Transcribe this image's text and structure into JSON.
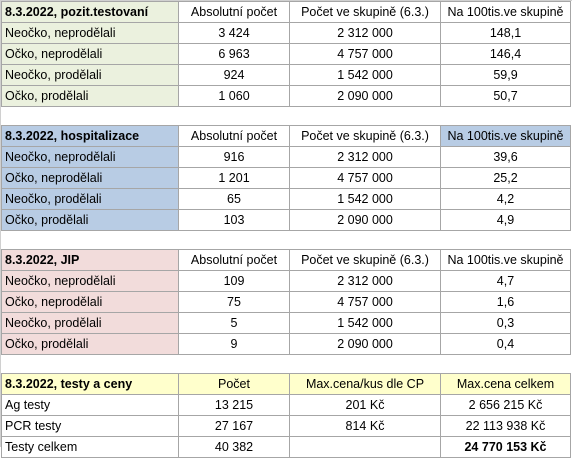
{
  "sections": [
    {
      "title": "8.3.2022, pozit.testovaní",
      "headers": [
        "Absolutní počet",
        "Počet ve skupině (6.3.)",
        "Na 100tis.ve skupině"
      ],
      "rows": [
        [
          "Neočko, neprodělali",
          "3 424",
          "2 312 000",
          "148,1"
        ],
        [
          "Očko, neprodělali",
          "6 963",
          "4 757 000",
          "146,4"
        ],
        [
          "Neočko, prodělali",
          "924",
          "1 542 000",
          "59,9"
        ],
        [
          "Očko, prodělali",
          "1 060",
          "2 090 000",
          "50,7"
        ]
      ]
    },
    {
      "title": "8.3.2022, hospitalizace",
      "headers": [
        "Absolutní počet",
        "Počet ve skupině (6.3.)",
        "Na 100tis.ve skupině"
      ],
      "rows": [
        [
          "Neočko, neprodělali",
          "916",
          "2 312 000",
          "39,6"
        ],
        [
          "Očko, neprodělali",
          "1 201",
          "4 757 000",
          "25,2"
        ],
        [
          "Neočko, prodělali",
          "65",
          "1 542 000",
          "4,2"
        ],
        [
          "Očko, prodělali",
          "103",
          "2 090 000",
          "4,9"
        ]
      ]
    },
    {
      "title": "8.3.2022, JIP",
      "headers": [
        "Absolutní počet",
        "Počet ve skupině (6.3.)",
        "Na 100tis.ve skupině"
      ],
      "rows": [
        [
          "Neočko, neprodělali",
          "109",
          "2 312 000",
          "4,7"
        ],
        [
          "Očko, neprodělali",
          "75",
          "4 757 000",
          "1,6"
        ],
        [
          "Neočko, prodělali",
          "5",
          "1 542 000",
          "0,3"
        ],
        [
          "Očko, prodělali",
          "9",
          "2 090 000",
          "0,4"
        ]
      ]
    },
    {
      "title": "8.3.2022, testy a ceny",
      "headers": [
        "Počet",
        "Max.cena/kus dle CP",
        "Max.cena celkem"
      ],
      "rows": [
        [
          "Ag testy",
          "13 215",
          "201 Kč",
          "2 656 215 Kč"
        ],
        [
          "PCR testy",
          "27 167",
          "814 Kč",
          "22 113 938 Kč"
        ],
        [
          "Testy celkem",
          "40 382",
          "",
          "24 770 153 Kč"
        ]
      ]
    }
  ],
  "colors": {
    "green": "#ebf1de",
    "blue": "#b8cce4",
    "pink": "#f2dcdb",
    "yellow": "#ffffcc"
  }
}
